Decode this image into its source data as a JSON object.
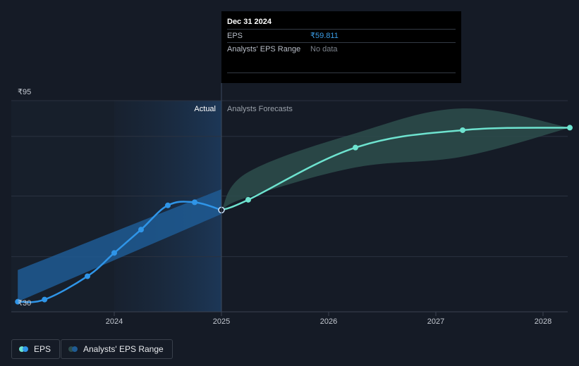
{
  "tooltip": {
    "date": "Dec 31 2024",
    "eps_label": "EPS",
    "eps_value": "₹59.811",
    "range_label": "Analysts' EPS Range",
    "range_value": "No data"
  },
  "regions": {
    "actual": "Actual",
    "forecast": "Analysts Forecasts"
  },
  "legend": {
    "eps": "EPS",
    "range": "Analysts' EPS Range"
  },
  "colors": {
    "background": "#151b26",
    "eps_line": "#2f95e8",
    "forecast_line": "#6ee3cf",
    "forecast_band": "#2d4d4c",
    "past_band": "#1f5b93"
  },
  "chart_data": {
    "type": "line",
    "title": "",
    "xlabel": "",
    "ylabel": "",
    "x_ticks": [
      "2024",
      "2025",
      "2026",
      "2027",
      "2028"
    ],
    "y_tick_labels": [
      "₹95",
      "₹30"
    ],
    "ylim": [
      30,
      95
    ],
    "xlim": [
      2023.1,
      2028.25
    ],
    "divider_x": 2025.0,
    "series": [
      {
        "name": "EPS",
        "role": "actual",
        "points": [
          [
            2023.1,
            30.3
          ],
          [
            2023.35,
            31.0
          ],
          [
            2023.75,
            38.5
          ],
          [
            2024.0,
            46.0
          ],
          [
            2024.25,
            53.5
          ],
          [
            2024.5,
            61.3
          ],
          [
            2024.75,
            62.3
          ],
          [
            2025.0,
            59.8
          ]
        ]
      },
      {
        "name": "EPS Forecast",
        "role": "forecast",
        "points": [
          [
            2025.0,
            59.8
          ],
          [
            2025.25,
            63.1
          ],
          [
            2026.25,
            79.9
          ],
          [
            2027.25,
            85.5
          ],
          [
            2028.25,
            86.3
          ]
        ]
      }
    ],
    "past_range_band": {
      "upper": [
        [
          2023.1,
          40.5
        ],
        [
          2025.0,
          66.5
        ]
      ],
      "lower": [
        [
          2023.1,
          30.3
        ],
        [
          2025.0,
          58.5
        ]
      ]
    },
    "forecast_range_band": {
      "upper": [
        [
          2025.0,
          59.8
        ],
        [
          2025.25,
          72.0
        ],
        [
          2026.25,
          84.5
        ],
        [
          2027.25,
          92.5
        ],
        [
          2028.25,
          86.3
        ]
      ],
      "lower": [
        [
          2025.0,
          59.8
        ],
        [
          2025.25,
          64.0
        ],
        [
          2026.25,
          73.5
        ],
        [
          2027.25,
          77.0
        ],
        [
          2028.25,
          86.3
        ]
      ]
    }
  }
}
